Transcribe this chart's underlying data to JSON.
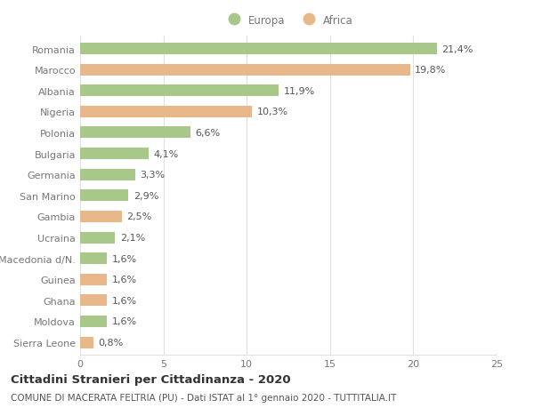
{
  "categories": [
    "Romania",
    "Marocco",
    "Albania",
    "Nigeria",
    "Polonia",
    "Bulgaria",
    "Germania",
    "San Marino",
    "Gambia",
    "Ucraina",
    "Macedonia d/N.",
    "Guinea",
    "Ghana",
    "Moldova",
    "Sierra Leone"
  ],
  "values": [
    21.4,
    19.8,
    11.9,
    10.3,
    6.6,
    4.1,
    3.3,
    2.9,
    2.5,
    2.1,
    1.6,
    1.6,
    1.6,
    1.6,
    0.8
  ],
  "continents": [
    "Europa",
    "Africa",
    "Europa",
    "Africa",
    "Europa",
    "Europa",
    "Europa",
    "Europa",
    "Africa",
    "Europa",
    "Europa",
    "Africa",
    "Africa",
    "Europa",
    "Africa"
  ],
  "labels": [
    "21,4%",
    "19,8%",
    "11,9%",
    "10,3%",
    "6,6%",
    "4,1%",
    "3,3%",
    "2,9%",
    "2,5%",
    "2,1%",
    "1,6%",
    "1,6%",
    "1,6%",
    "1,6%",
    "0,8%"
  ],
  "color_europa": "#a8c88a",
  "color_africa": "#e8b88a",
  "title1": "Cittadini Stranieri per Cittadinanza - 2020",
  "title2": "COMUNE DI MACERATA FELTRIA (PU) - Dati ISTAT al 1° gennaio 2020 - TUTTITALIA.IT",
  "xlim": [
    0,
    25
  ],
  "xticks": [
    0,
    5,
    10,
    15,
    20,
    25
  ],
  "bg_color": "#ffffff",
  "grid_color": "#e0e0e0",
  "legend_europa": "Europa",
  "legend_africa": "Africa",
  "bar_height": 0.55,
  "label_fontsize": 8.0,
  "tick_fontsize": 8.0,
  "title1_fontsize": 9.5,
  "title2_fontsize": 7.5
}
